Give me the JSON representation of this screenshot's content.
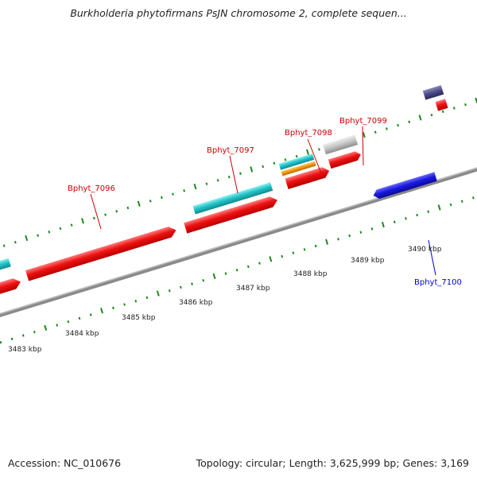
{
  "title": "Burkholderia phytofirmans PsJN chromosome 2, complete sequen...",
  "footer": {
    "accession": "Accession: NC_010676",
    "info": "Topology: circular; Length: 3,625,999 bp; Genes: 3,169"
  },
  "colors": {
    "forward_cds": "#ee1111",
    "reverse_cds": "#1a1ae0",
    "feature_cyan": "#22c4c8",
    "feature_orange": "#f0960a",
    "feature_grey": "#c4c4c4",
    "feature_purple": "#4a4a8a",
    "backbone": "#8a8a8a",
    "tick_green": "#1a8a1a",
    "forward_label": "#cc0000",
    "reverse_label": "#0000cc"
  },
  "kbp_labels": [
    "3483 kbp",
    "3484 kbp",
    "3485 kbp",
    "3486 kbp",
    "3487 kbp",
    "3488 kbp",
    "3489 kbp",
    "3490 kbp"
  ],
  "gene_labels": {
    "g7096": "Bphyt_7096",
    "g7097": "Bphyt_7097",
    "g7098": "Bphyt_7098",
    "g7099": "Bphyt_7099",
    "g7100": "Bphyt_7100"
  }
}
